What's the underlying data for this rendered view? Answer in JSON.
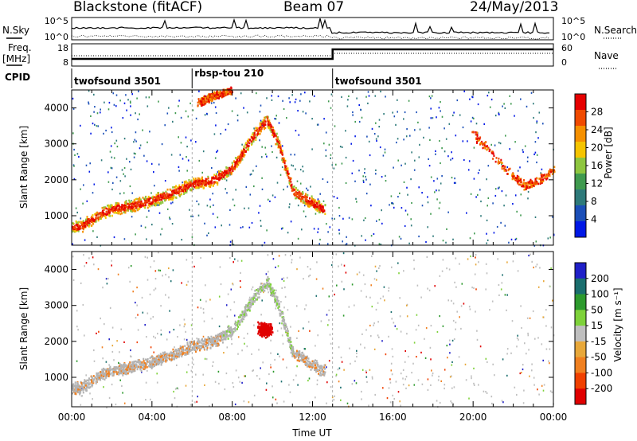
{
  "header": {
    "station": "Blackstone (fitACF)",
    "beam": "Beam 07",
    "date": "24/May/2013"
  },
  "noise_panel": {
    "left_label": "N.Sky",
    "right_label": "N.Search",
    "y_ticks_left": [
      "10^5",
      "10^0"
    ],
    "y_ticks_right": [
      "10^5",
      "10^0"
    ]
  },
  "freq_panel": {
    "left_label_line1": "Freq.",
    "left_label_line2": "[MHz]",
    "right_label": "Nave",
    "y_ticks_left": [
      "18",
      "8"
    ],
    "y_ticks_right": [
      "60",
      "0"
    ]
  },
  "cpid": {
    "label": "CPID",
    "segments": [
      {
        "name": "twofsound 3501",
        "start_hour": 0,
        "end_hour": 6
      },
      {
        "name": "rbsp-tou 210",
        "start_hour": 6,
        "end_hour": 13
      },
      {
        "name": "twofsound 3501",
        "start_hour": 13,
        "end_hour": 24
      }
    ]
  },
  "chart_data": [
    {
      "type": "heatmap",
      "title": "",
      "ylabel": "Slant Range [km]",
      "xlabel": "",
      "ylim": [
        180,
        4500
      ],
      "xlim": [
        0,
        24
      ],
      "yticks": [
        1000,
        2000,
        3000,
        4000
      ],
      "colorbar_label": "Power [dB]",
      "colorbar_ticks": [
        "4",
        "8",
        "12",
        "16",
        "20",
        "24",
        "28"
      ],
      "colorbar_range": [
        0,
        32
      ],
      "features": [
        {
          "name": "ground-scatter-trace",
          "x": [
            0,
            0.5,
            1.5,
            2,
            3,
            4,
            5,
            6,
            7,
            8,
            9,
            9.7,
            10.3,
            11,
            12.5
          ],
          "y": [
            700,
            750,
            1100,
            1200,
            1300,
            1450,
            1650,
            1900,
            2000,
            2350,
            3200,
            3700,
            3000,
            1700,
            1200
          ]
        },
        {
          "name": "early-morning-arc",
          "x": [
            6.3,
            6.8,
            7.3,
            7.9
          ],
          "y": [
            4150,
            4300,
            4400,
            4500
          ]
        },
        {
          "name": "evening-arc",
          "x": [
            20,
            21,
            22,
            22.6,
            23.2,
            24
          ],
          "y": [
            3300,
            2700,
            2100,
            1850,
            2000,
            2300
          ]
        }
      ]
    },
    {
      "type": "heatmap",
      "title": "",
      "ylabel": "Slant Range [km]",
      "xlabel": "Time UT",
      "ylim": [
        180,
        4500
      ],
      "xlim": [
        0,
        24
      ],
      "yticks": [
        1000,
        2000,
        3000,
        4000
      ],
      "xticks": [
        "00:00",
        "04:00",
        "08:00",
        "12:00",
        "16:00",
        "20:00",
        "00:00"
      ],
      "colorbar_label": "Velocity [m s⁻¹]",
      "colorbar_ticks": [
        "200",
        "100",
        "50",
        "15",
        "-15",
        "-50",
        "-100",
        "-200"
      ],
      "features": [
        {
          "name": "ground-scatter-trace",
          "x": [
            0,
            0.5,
            1.5,
            2,
            3,
            4,
            5,
            6,
            7,
            8,
            9,
            9.7,
            10.3,
            11,
            12.5
          ],
          "y": [
            700,
            750,
            1100,
            1200,
            1300,
            1450,
            1650,
            1900,
            2000,
            2350,
            3200,
            3700,
            3000,
            1700,
            1200
          ]
        },
        {
          "name": "red-patch",
          "x": [
            9.6
          ],
          "y": [
            2350
          ]
        }
      ]
    }
  ],
  "colors": {
    "power_scale": [
      "#0018e6",
      "#1b4fb8",
      "#2e7a7a",
      "#3f9a4f",
      "#8ec63f",
      "#f5c400",
      "#f59000",
      "#f04a00",
      "#e60000"
    ],
    "velocity_scale": [
      "#2020c8",
      "#1a6e6e",
      "#2d9a2d",
      "#7ed23a",
      "#bfbfbf",
      "#e8a83a",
      "#f08020",
      "#f04000",
      "#e00000"
    ],
    "ground_scatter": "#b3b3b3"
  }
}
